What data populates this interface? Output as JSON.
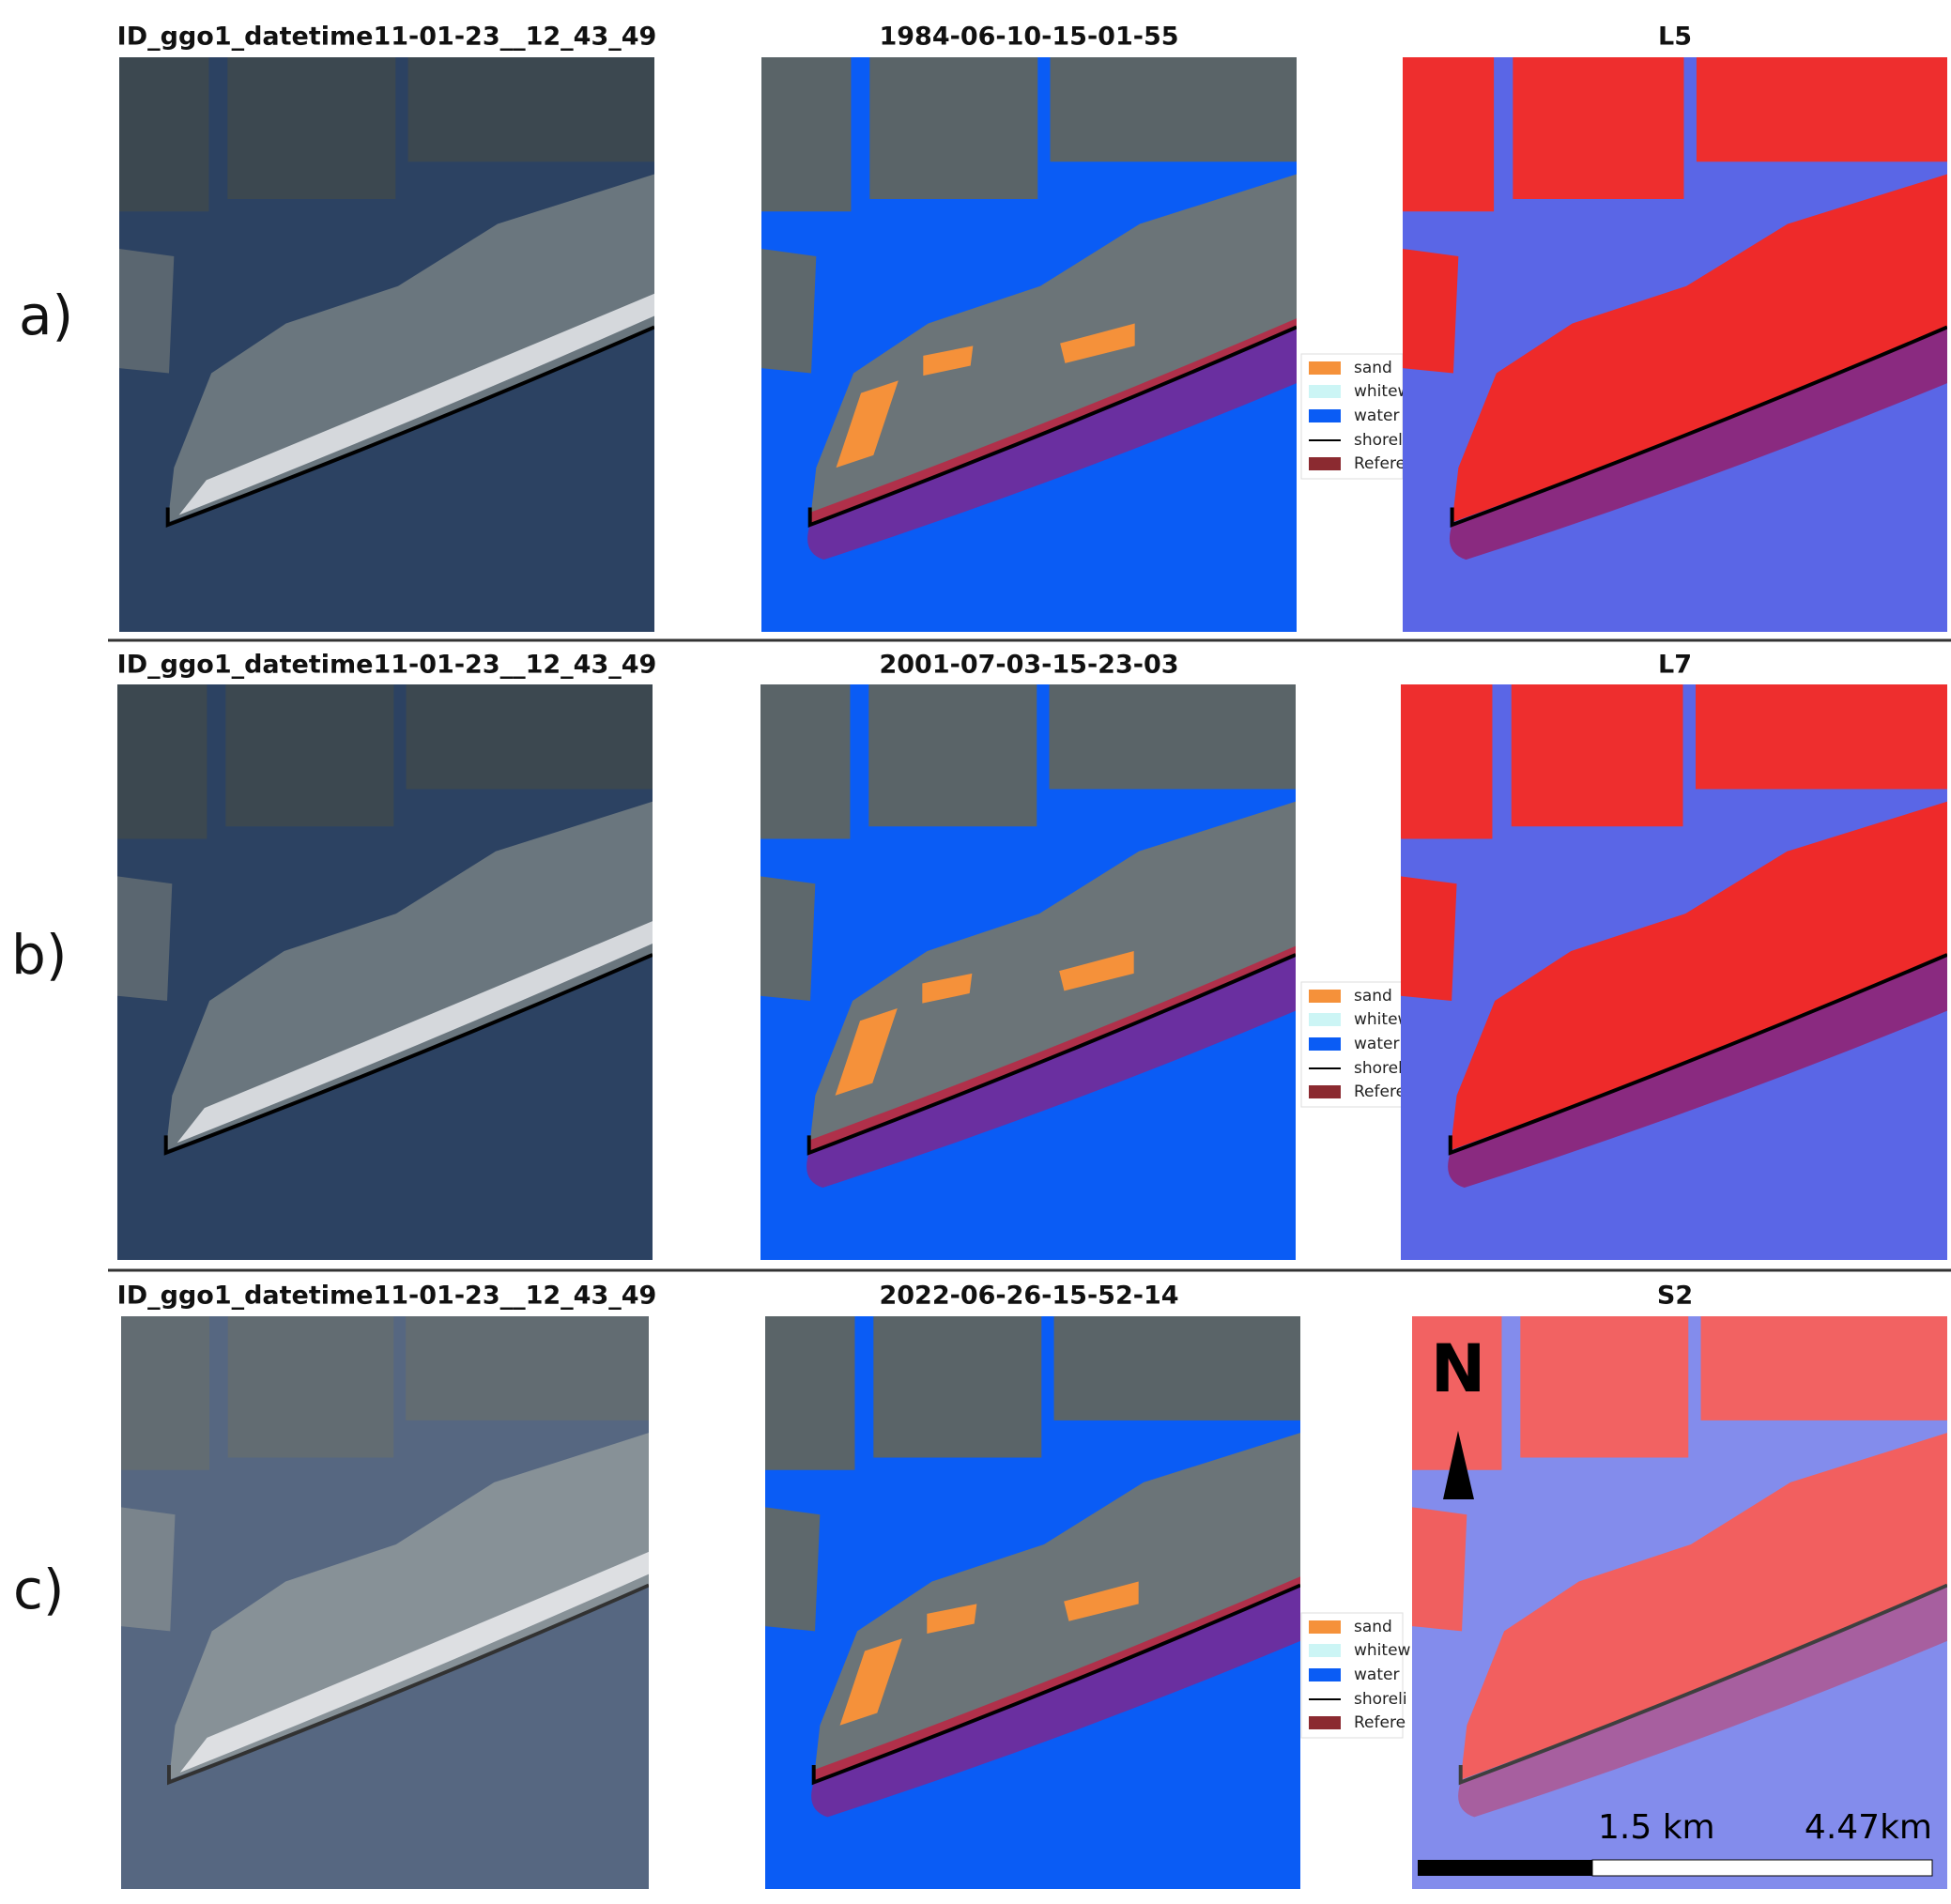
{
  "rows": [
    {
      "label": "a)",
      "panels": [
        {
          "title": "ID_ggo1_datetime11-01-23__12_43_49"
        },
        {
          "title": "1984-06-10-15-01-55",
          "legend": [
            "sand",
            "whitew",
            "water",
            "shoreli",
            "Refere"
          ]
        },
        {
          "title": "L5"
        }
      ]
    },
    {
      "label": "b)",
      "panels": [
        {
          "title": "ID_ggo1_datetime11-01-23__12_43_49"
        },
        {
          "title": "2001-07-03-15-23-03",
          "legend": [
            "sand",
            "whitew",
            "water",
            "shoreli",
            "Refere"
          ]
        },
        {
          "title": "L7"
        }
      ]
    },
    {
      "label": "c)",
      "panels": [
        {
          "title": "ID_ggo1_datetime11-01-23__12_43_49"
        },
        {
          "title": "2022-06-26-15-52-14",
          "legend": [
            "sand",
            "whitew",
            "water",
            "shoreli",
            "Refere"
          ]
        },
        {
          "title": "S2"
        }
      ]
    }
  ],
  "north_arrow": "N",
  "scale_bar": {
    "labels": [
      "1.5 km",
      "4.47km"
    ]
  }
}
